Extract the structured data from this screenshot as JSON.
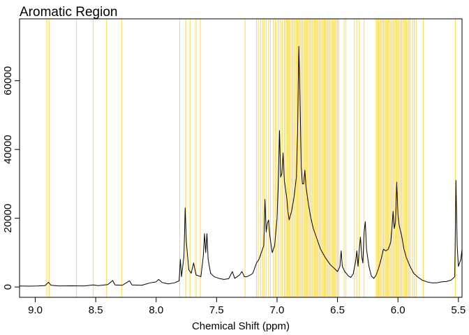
{
  "chart_data": {
    "type": "line",
    "title": "Aromatic Region",
    "xlabel": "Chemical Shift (ppm)",
    "ylabel": "",
    "x_reversed": true,
    "xlim": [
      9.13,
      5.47
    ],
    "ylim": [
      -3000,
      78000
    ],
    "xticks": [
      9.0,
      8.5,
      8.0,
      7.5,
      7.0,
      6.5,
      6.0,
      5.5
    ],
    "xtick_labels": [
      "9.0",
      "8.5",
      "8.0",
      "7.5",
      "7.0",
      "6.5",
      "6.0",
      "5.5"
    ],
    "yticks": [
      0,
      20000,
      40000,
      60000
    ],
    "ytick_labels": [
      "0",
      "20000",
      "40000",
      "60000"
    ],
    "grid": false,
    "line_color": "#000000",
    "marker_color": "#FFD84D",
    "series": [
      {
        "points": [
          [
            9.13,
            300
          ],
          [
            9.05,
            250
          ],
          [
            8.98,
            300
          ],
          [
            8.92,
            400
          ],
          [
            8.89,
            1400
          ],
          [
            8.87,
            500
          ],
          [
            8.8,
            300
          ],
          [
            8.7,
            350
          ],
          [
            8.6,
            300
          ],
          [
            8.52,
            600
          ],
          [
            8.48,
            400
          ],
          [
            8.4,
            700
          ],
          [
            8.36,
            1900
          ],
          [
            8.34,
            600
          ],
          [
            8.28,
            500
          ],
          [
            8.22,
            1800
          ],
          [
            8.2,
            600
          ],
          [
            8.12,
            500
          ],
          [
            8.05,
            1200
          ],
          [
            8.0,
            1500
          ],
          [
            7.98,
            2200
          ],
          [
            7.95,
            1300
          ],
          [
            7.9,
            900
          ],
          [
            7.85,
            1200
          ],
          [
            7.81,
            1800
          ],
          [
            7.8,
            8000
          ],
          [
            7.79,
            3000
          ],
          [
            7.77,
            9000
          ],
          [
            7.76,
            23000
          ],
          [
            7.75,
            13000
          ],
          [
            7.73,
            5000
          ],
          [
            7.71,
            4000
          ],
          [
            7.69,
            7000
          ],
          [
            7.67,
            3500
          ],
          [
            7.63,
            3000
          ],
          [
            7.61,
            9000
          ],
          [
            7.6,
            15500
          ],
          [
            7.59,
            10000
          ],
          [
            7.58,
            15500
          ],
          [
            7.57,
            8000
          ],
          [
            7.55,
            4000
          ],
          [
            7.52,
            3000
          ],
          [
            7.48,
            2500
          ],
          [
            7.44,
            2200
          ],
          [
            7.4,
            2400
          ],
          [
            7.37,
            4500
          ],
          [
            7.35,
            2500
          ],
          [
            7.31,
            3500
          ],
          [
            7.29,
            4500
          ],
          [
            7.27,
            3000
          ],
          [
            7.25,
            3000
          ],
          [
            7.22,
            3500
          ],
          [
            7.2,
            4000
          ],
          [
            7.17,
            7000
          ],
          [
            7.15,
            8000
          ],
          [
            7.13,
            10000
          ],
          [
            7.11,
            12000
          ],
          [
            7.1,
            25500
          ],
          [
            7.09,
            16000
          ],
          [
            7.08,
            18500
          ],
          [
            7.07,
            19500
          ],
          [
            7.06,
            15000
          ],
          [
            7.04,
            10000
          ],
          [
            7.02,
            12000
          ],
          [
            7.0,
            20000
          ],
          [
            6.99,
            30000
          ],
          [
            6.98,
            45500
          ],
          [
            6.97,
            32000
          ],
          [
            6.96,
            33000
          ],
          [
            6.95,
            39000
          ],
          [
            6.94,
            31000
          ],
          [
            6.92,
            26000
          ],
          [
            6.91,
            22000
          ],
          [
            6.9,
            19500
          ],
          [
            6.88,
            22000
          ],
          [
            6.86,
            26000
          ],
          [
            6.84,
            32000
          ],
          [
            6.83,
            45000
          ],
          [
            6.82,
            70000
          ],
          [
            6.81,
            55000
          ],
          [
            6.8,
            35000
          ],
          [
            6.79,
            30000
          ],
          [
            6.78,
            30000
          ],
          [
            6.77,
            34000
          ],
          [
            6.76,
            29000
          ],
          [
            6.74,
            24000
          ],
          [
            6.72,
            20000
          ],
          [
            6.7,
            17000
          ],
          [
            6.67,
            14000
          ],
          [
            6.64,
            11000
          ],
          [
            6.6,
            8500
          ],
          [
            6.56,
            6500
          ],
          [
            6.52,
            5200
          ],
          [
            6.5,
            4500
          ],
          [
            6.48,
            6000
          ],
          [
            6.47,
            10500
          ],
          [
            6.46,
            6000
          ],
          [
            6.44,
            4500
          ],
          [
            6.41,
            3200
          ],
          [
            6.39,
            2800
          ],
          [
            6.37,
            3800
          ],
          [
            6.35,
            7500
          ],
          [
            6.34,
            10500
          ],
          [
            6.33,
            6000
          ],
          [
            6.32,
            11000
          ],
          [
            6.31,
            14500
          ],
          [
            6.3,
            9000
          ],
          [
            6.29,
            7000
          ],
          [
            6.28,
            16000
          ],
          [
            6.27,
            19000
          ],
          [
            6.26,
            11000
          ],
          [
            6.24,
            6000
          ],
          [
            6.22,
            3200
          ],
          [
            6.2,
            2500
          ],
          [
            6.18,
            3500
          ],
          [
            6.16,
            5500
          ],
          [
            6.14,
            8000
          ],
          [
            6.12,
            11000
          ],
          [
            6.1,
            10500
          ],
          [
            6.08,
            11000
          ],
          [
            6.06,
            13000
          ],
          [
            6.05,
            17000
          ],
          [
            6.04,
            22000
          ],
          [
            6.03,
            17000
          ],
          [
            6.02,
            19000
          ],
          [
            6.01,
            30500
          ],
          [
            6.0,
            21000
          ],
          [
            5.99,
            18000
          ],
          [
            5.97,
            15000
          ],
          [
            5.95,
            11000
          ],
          [
            5.93,
            8500
          ],
          [
            5.9,
            6000
          ],
          [
            5.87,
            4000
          ],
          [
            5.84,
            3000
          ],
          [
            5.8,
            2000
          ],
          [
            5.76,
            1500
          ],
          [
            5.72,
            1200
          ],
          [
            5.68,
            1200
          ],
          [
            5.64,
            1500
          ],
          [
            5.6,
            1600
          ],
          [
            5.56,
            2000
          ],
          [
            5.53,
            3000
          ],
          [
            5.52,
            31000
          ],
          [
            5.51,
            12000
          ],
          [
            5.5,
            6000
          ],
          [
            5.48,
            8000
          ],
          [
            5.47,
            11000
          ]
        ]
      }
    ],
    "markers_ppm": [
      8.905,
      8.885,
      8.66,
      8.52,
      8.41,
      8.285,
      7.805,
      7.755,
      7.72,
      7.67,
      7.635,
      7.265,
      7.17,
      7.155,
      7.135,
      7.12,
      7.105,
      7.09,
      7.07,
      7.055,
      7.03,
      7.015,
      7.0,
      6.985,
      6.97,
      6.955,
      6.94,
      6.93,
      6.92,
      6.91,
      6.9,
      6.89,
      6.88,
      6.87,
      6.86,
      6.85,
      6.84,
      6.83,
      6.82,
      6.81,
      6.8,
      6.79,
      6.78,
      6.77,
      6.76,
      6.75,
      6.74,
      6.73,
      6.72,
      6.71,
      6.7,
      6.69,
      6.68,
      6.67,
      6.66,
      6.65,
      6.64,
      6.63,
      6.62,
      6.61,
      6.6,
      6.59,
      6.58,
      6.57,
      6.56,
      6.55,
      6.54,
      6.53,
      6.52,
      6.51,
      6.5,
      6.49,
      6.445,
      6.43,
      6.36,
      6.34,
      6.32,
      6.28,
      6.18,
      6.17,
      6.16,
      6.15,
      6.14,
      6.13,
      6.12,
      6.11,
      6.1,
      6.09,
      6.08,
      6.07,
      6.06,
      6.05,
      6.04,
      6.03,
      6.02,
      6.01,
      6.0,
      5.99,
      5.98,
      5.97,
      5.96,
      5.95,
      5.94,
      5.93,
      5.92,
      5.91,
      5.9,
      5.88,
      5.865,
      5.85,
      5.79,
      5.525
    ]
  }
}
